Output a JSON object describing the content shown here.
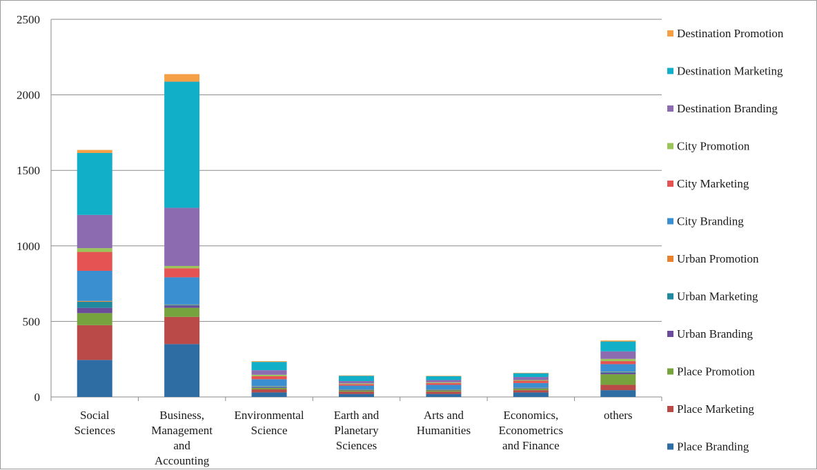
{
  "chart_data": {
    "type": "bar",
    "stacked": true,
    "title": "",
    "xlabel": "",
    "ylabel": "",
    "ylim": [
      0,
      2500
    ],
    "yticks": [
      0,
      500,
      1000,
      1500,
      2000,
      2500
    ],
    "grid": "horizontal",
    "legend_position": "right",
    "categories": [
      [
        "Social",
        "Sciences"
      ],
      [
        "Business,",
        "Management",
        "and",
        "Accounting"
      ],
      [
        "Environmental",
        "Science"
      ],
      [
        "Earth and",
        "Planetary",
        "Sciences"
      ],
      [
        "Arts and",
        "Humanities"
      ],
      [
        "Economics,",
        "Econometrics",
        "and Finance"
      ],
      [
        "others"
      ]
    ],
    "series": [
      {
        "name": "Place Branding",
        "color": "#2e6da4",
        "values": [
          245,
          350,
          30,
          20,
          20,
          30,
          45
        ]
      },
      {
        "name": "Place Marketing",
        "color": "#b94a48",
        "values": [
          230,
          180,
          20,
          15,
          15,
          15,
          35
        ]
      },
      {
        "name": "Place Promotion",
        "color": "#76a33e",
        "values": [
          80,
          60,
          10,
          8,
          8,
          10,
          70
        ]
      },
      {
        "name": "Urban Branding",
        "color": "#6b4c9a",
        "values": [
          35,
          15,
          5,
          3,
          3,
          3,
          10
        ]
      },
      {
        "name": "Urban Marketing",
        "color": "#1f8a9e",
        "values": [
          40,
          5,
          5,
          3,
          3,
          3,
          5
        ]
      },
      {
        "name": "Urban Promotion",
        "color": "#e8822f",
        "values": [
          5,
          2,
          2,
          1,
          1,
          1,
          2
        ]
      },
      {
        "name": "City Branding",
        "color": "#3a8fd0",
        "values": [
          200,
          180,
          45,
          25,
          30,
          30,
          50
        ]
      },
      {
        "name": "City Marketing",
        "color": "#e55353",
        "values": [
          125,
          60,
          20,
          10,
          12,
          15,
          20
        ]
      },
      {
        "name": "City Promotion",
        "color": "#9bc55a",
        "values": [
          25,
          15,
          10,
          5,
          5,
          5,
          15
        ]
      },
      {
        "name": "Destination Branding",
        "color": "#8d6bb0",
        "values": [
          220,
          385,
          30,
          15,
          15,
          20,
          50
        ]
      },
      {
        "name": "Destination Marketing",
        "color": "#12afc8",
        "values": [
          410,
          835,
          55,
          35,
          25,
          25,
          65
        ]
      },
      {
        "name": "Destination Promotion",
        "color": "#f5a046",
        "values": [
          20,
          50,
          5,
          3,
          3,
          3,
          7
        ]
      }
    ]
  }
}
